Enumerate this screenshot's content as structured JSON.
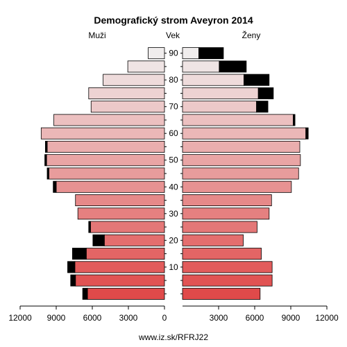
{
  "chart_data": {
    "type": "bar",
    "title": "Demografický strom Aveyron 2014",
    "labels": {
      "left": "Muži",
      "center": "Vek",
      "right": "Ženy"
    },
    "footer": "www.iz.sk/RFRJ22",
    "xlim": [
      0,
      12000
    ],
    "xticks": [
      12000,
      9000,
      6000,
      3000,
      0,
      3000,
      6000,
      9000,
      12000
    ],
    "age_ticks": [
      10,
      20,
      30,
      40,
      50,
      60,
      70,
      80,
      90
    ],
    "age_groups": [
      {
        "age": 0,
        "male": 6400,
        "male_excess": 400,
        "female": 6450,
        "female_excess": 0
      },
      {
        "age": 5,
        "male": 7400,
        "male_excess": 400,
        "female": 7450,
        "female_excess": 0
      },
      {
        "age": 10,
        "male": 7450,
        "male_excess": 600,
        "female": 7450,
        "female_excess": 0
      },
      {
        "age": 15,
        "male": 6500,
        "male_excess": 1150,
        "female": 6550,
        "female_excess": 0
      },
      {
        "age": 20,
        "male": 5000,
        "male_excess": 950,
        "female": 5050,
        "female_excess": 0
      },
      {
        "age": 25,
        "male": 6150,
        "male_excess": 150,
        "female": 6200,
        "female_excess": 0
      },
      {
        "age": 30,
        "male": 7200,
        "male_excess": 0,
        "female": 7200,
        "female_excess": 0
      },
      {
        "age": 35,
        "male": 7400,
        "male_excess": 0,
        "female": 7400,
        "female_excess": 0
      },
      {
        "age": 40,
        "male": 9000,
        "male_excess": 250,
        "female": 9050,
        "female_excess": 0
      },
      {
        "age": 45,
        "male": 9600,
        "male_excess": 150,
        "female": 9650,
        "female_excess": 0
      },
      {
        "age": 50,
        "male": 9800,
        "male_excess": 150,
        "female": 9800,
        "female_excess": 0
      },
      {
        "age": 55,
        "male": 9750,
        "male_excess": 150,
        "female": 9750,
        "female_excess": 0
      },
      {
        "age": 60,
        "male": 10250,
        "male_excess": 0,
        "female": 10250,
        "female_excess": 200
      },
      {
        "age": 65,
        "male": 9200,
        "male_excess": 0,
        "female": 9200,
        "female_excess": 150
      },
      {
        "age": 70,
        "male": 6100,
        "male_excess": 0,
        "female": 6150,
        "female_excess": 950
      },
      {
        "age": 75,
        "male": 6300,
        "male_excess": 0,
        "female": 6300,
        "female_excess": 1250
      },
      {
        "age": 80,
        "male": 5100,
        "male_excess": 0,
        "female": 5100,
        "female_excess": 2100
      },
      {
        "age": 85,
        "male": 3050,
        "male_excess": 0,
        "female": 3050,
        "female_excess": 2250
      },
      {
        "age": 90,
        "male": 1350,
        "male_excess": 0,
        "female": 1350,
        "female_excess": 2050
      }
    ],
    "colors": {
      "excess": "#000000",
      "bottom": "#e04a4a",
      "top": "#f0eded",
      "tick_line": "#000000"
    }
  }
}
